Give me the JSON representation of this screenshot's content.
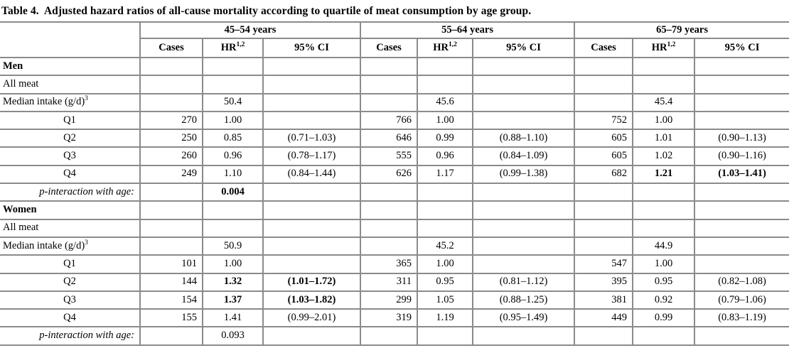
{
  "title": "Table 4.  Adjusted hazard ratios of all-cause mortality according to quartile of meat consumption by age group.",
  "header": {
    "groups": [
      "45–54 years",
      "55–64 years",
      "65–79 years"
    ],
    "cases": "Cases",
    "hr": "HR",
    "hr_sup": "1,2",
    "ci": "95% CI"
  },
  "border_color": "#8b8b8b",
  "chart_data": {
    "type": "table",
    "title": "Table 4. Adjusted hazard ratios of all-cause mortality according to quartile of meat consumption by age group.",
    "column_groups": [
      "45–54 years",
      "55–64 years",
      "65–79 years"
    ],
    "columns_per_group": [
      "Cases",
      "HR",
      "95% CI"
    ]
  },
  "table": {
    "rows": [
      {
        "label": "Men",
        "style": "section",
        "cells": [
          "",
          "",
          "",
          "",
          "",
          "",
          "",
          "",
          ""
        ],
        "bold_cells": []
      },
      {
        "label": "All meat",
        "style": "plain",
        "cells": [
          "",
          "",
          "",
          "",
          "",
          "",
          "",
          "",
          ""
        ],
        "bold_cells": []
      },
      {
        "label": "Median intake (g/d)",
        "label_sup": "3",
        "style": "plain",
        "cells": [
          "",
          "50.4",
          "",
          "",
          "45.6",
          "",
          "",
          "45.4",
          ""
        ],
        "bold_cells": []
      },
      {
        "label": "Q1",
        "style": "quartile",
        "cells": [
          "270",
          "1.00",
          "",
          "766",
          "1.00",
          "",
          "752",
          "1.00",
          ""
        ],
        "bold_cells": []
      },
      {
        "label": "Q2",
        "style": "quartile",
        "cells": [
          "250",
          "0.85",
          "(0.71–1.03)",
          "646",
          "0.99",
          "(0.88–1.10)",
          "605",
          "1.01",
          "(0.90–1.13)"
        ],
        "bold_cells": []
      },
      {
        "label": "Q3",
        "style": "quartile",
        "cells": [
          "260",
          "0.96",
          "(0.78–1.17)",
          "555",
          "0.96",
          "(0.84–1.09)",
          "605",
          "1.02",
          "(0.90–1.16)"
        ],
        "bold_cells": []
      },
      {
        "label": "Q4",
        "style": "quartile",
        "cells": [
          "249",
          "1.10",
          "(0.84–1.44)",
          "626",
          "1.17",
          "(0.99–1.38)",
          "682",
          "1.21",
          "(1.03–1.41)"
        ],
        "bold_cells": [
          7,
          8
        ]
      },
      {
        "label": "p-interaction with age:",
        "style": "pint",
        "cells": [
          "",
          "0.004",
          "",
          "",
          "",
          "",
          "",
          "",
          ""
        ],
        "bold_cells": [
          1
        ]
      },
      {
        "label": "Women",
        "style": "section",
        "cells": [
          "",
          "",
          "",
          "",
          "",
          "",
          "",
          "",
          ""
        ],
        "bold_cells": []
      },
      {
        "label": "All meat",
        "style": "plain",
        "cells": [
          "",
          "",
          "",
          "",
          "",
          "",
          "",
          "",
          ""
        ],
        "bold_cells": []
      },
      {
        "label": "Median intake (g/d)",
        "label_sup": "3",
        "style": "plain",
        "cells": [
          "",
          "50.9",
          "",
          "",
          "45.2",
          "",
          "",
          "44.9",
          ""
        ],
        "bold_cells": []
      },
      {
        "label": "Q1",
        "style": "quartile",
        "cells": [
          "101",
          "1.00",
          "",
          "365",
          "1.00",
          "",
          "547",
          "1.00",
          ""
        ],
        "bold_cells": []
      },
      {
        "label": "Q2",
        "style": "quartile",
        "cells": [
          "144",
          "1.32",
          "(1.01–1.72)",
          "311",
          "0.95",
          "(0.81–1.12)",
          "395",
          "0.95",
          "(0.82–1.08)"
        ],
        "bold_cells": [
          1,
          2
        ]
      },
      {
        "label": "Q3",
        "style": "quartile",
        "cells": [
          "154",
          "1.37",
          "(1.03–1.82)",
          "299",
          "1.05",
          "(0.88–1.25)",
          "381",
          "0.92",
          "(0.79–1.06)"
        ],
        "bold_cells": [
          1,
          2
        ]
      },
      {
        "label": "Q4",
        "style": "quartile",
        "cells": [
          "155",
          "1.41",
          "(0.99–2.01)",
          "319",
          "1.19",
          "(0.95–1.49)",
          "449",
          "0.99",
          "(0.83–1.19)"
        ],
        "bold_cells": []
      },
      {
        "label": "p-interaction with age:",
        "style": "pint",
        "cells": [
          "",
          "0.093",
          "",
          "",
          "",
          "",
          "",
          "",
          ""
        ],
        "bold_cells": []
      }
    ]
  }
}
